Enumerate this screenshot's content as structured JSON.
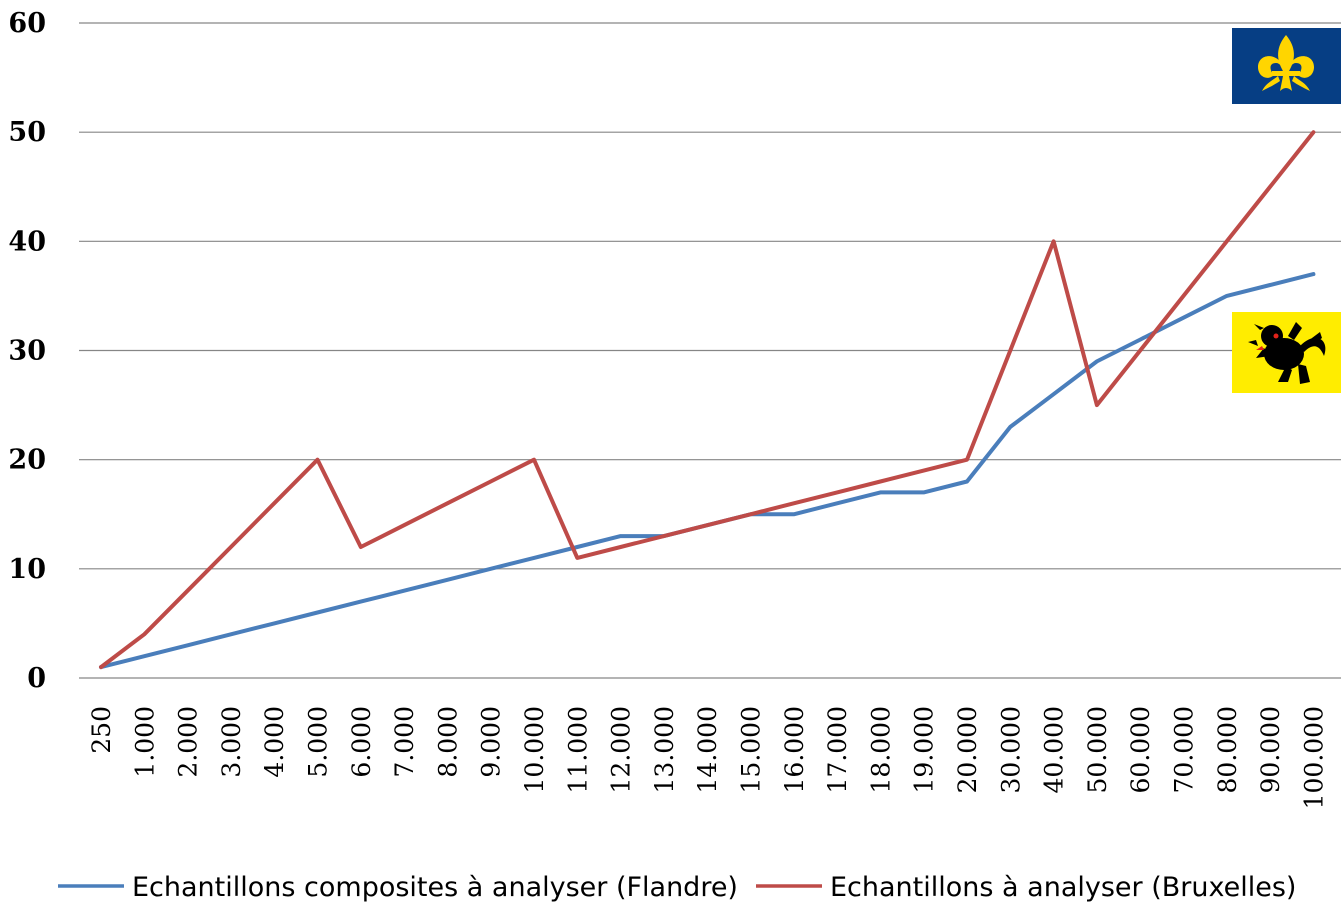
{
  "chart_data": {
    "type": "line",
    "title": "",
    "xlabel": "",
    "ylabel": "",
    "categories": [
      "250",
      "1.000",
      "2.000",
      "3.000",
      "4.000",
      "5.000",
      "6.000",
      "7.000",
      "8.000",
      "9.000",
      "10.000",
      "11.000",
      "12.000",
      "13.000",
      "14.000",
      "15.000",
      "16.000",
      "17.000",
      "18.000",
      "19.000",
      "20.000",
      "30.000",
      "40.000",
      "50.000",
      "60.000",
      "70.000",
      "80.000",
      "90.000",
      "100.000"
    ],
    "ylim": [
      0,
      60
    ],
    "yticks": [
      "0",
      "10",
      "20",
      "30",
      "40",
      "50",
      "60"
    ],
    "grid": true,
    "legend_position": "bottom",
    "series": [
      {
        "name": "Echantillons composites à analyser (Flandre)",
        "color": "#4a7ebb",
        "values": [
          1,
          2,
          3,
          4,
          5,
          6,
          7,
          8,
          9,
          10,
          11,
          12,
          13,
          13,
          14,
          15,
          15,
          16,
          17,
          17,
          18,
          23,
          26,
          29,
          31,
          33,
          35,
          36,
          37
        ]
      },
      {
        "name": "Echantillons à analyser (Bruxelles)",
        "color": "#be4b48",
        "values": [
          1,
          4,
          8,
          12,
          16,
          20,
          12,
          14,
          16,
          18,
          20,
          11,
          12,
          13,
          14,
          15,
          16,
          17,
          18,
          19,
          20,
          30,
          40,
          25,
          30,
          35,
          40,
          45,
          50
        ]
      }
    ],
    "insets": [
      {
        "name": "Brussels flag",
        "icon": "iris-flag-icon",
        "background": "#063e84",
        "symbol_color": "#ffd500"
      },
      {
        "name": "Flanders flag",
        "icon": "lion-flag-icon",
        "background": "#ffed00",
        "symbol_color": "#000000"
      }
    ]
  }
}
